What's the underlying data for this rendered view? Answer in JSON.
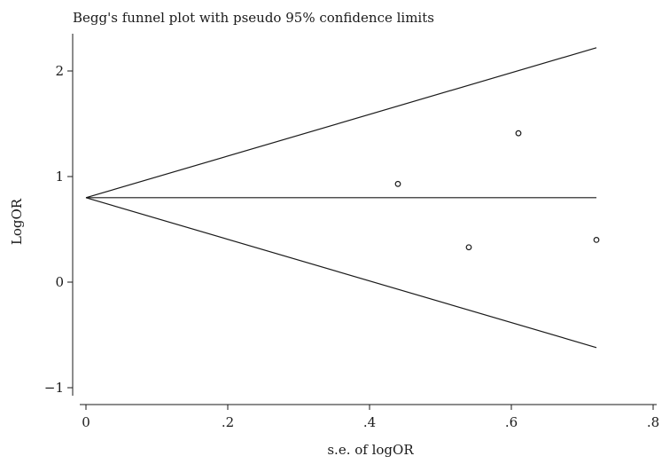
{
  "chart_data": {
    "type": "scatter",
    "title": "Begg's funnel plot with pseudo 95% confidence limits",
    "xlabel": "s.e. of logOR",
    "ylabel": "LogOR",
    "xlim": [
      0,
      0.8
    ],
    "ylim": [
      -1,
      2.2
    ],
    "x_ticks": [
      {
        "value": 0,
        "label": "0"
      },
      {
        "value": 0.2,
        "label": ".2"
      },
      {
        "value": 0.4,
        "label": ".4"
      },
      {
        "value": 0.6,
        "label": ".6"
      },
      {
        "value": 0.8,
        "label": ".8"
      }
    ],
    "y_ticks": [
      {
        "value": -1,
        "label": "−1"
      },
      {
        "value": 0,
        "label": "0"
      },
      {
        "value": 1,
        "label": "1"
      },
      {
        "value": 2,
        "label": "2"
      }
    ],
    "points": [
      {
        "x": 0.44,
        "y": 0.93
      },
      {
        "x": 0.54,
        "y": 0.33
      },
      {
        "x": 0.61,
        "y": 1.41
      },
      {
        "x": 0.72,
        "y": 0.4
      }
    ],
    "pooled_estimate": 0.8,
    "funnel": {
      "se_max": 0.72,
      "upper_at_max": 2.22,
      "lower_at_max": -0.62
    },
    "grid": false,
    "colors": {
      "line": "#1a1a1a",
      "marker": "#1a1a1a",
      "background": "#ffffff"
    }
  }
}
